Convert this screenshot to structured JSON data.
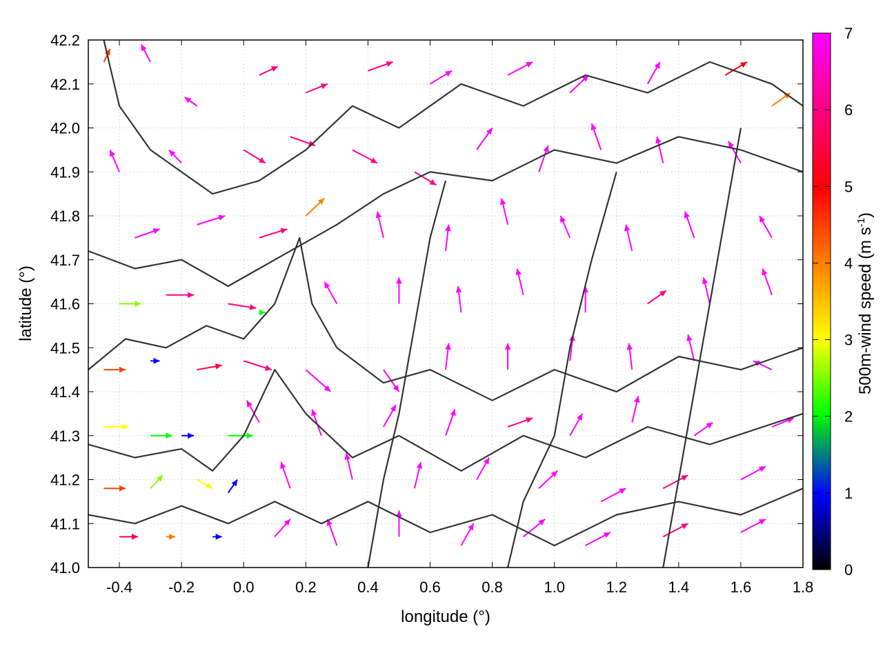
{
  "chart_data": {
    "type": "vector-field",
    "xlabel": "longitude (°)",
    "ylabel": "latitude (°)",
    "colorbar_label_main": "500m-wind speed (m s",
    "colorbar_label_exp": "-1",
    "colorbar_label_close": ")",
    "xlim": [
      -0.5,
      1.8
    ],
    "ylim": [
      41.0,
      42.2
    ],
    "x_ticks": [
      -0.4,
      -0.2,
      0.0,
      0.2,
      0.4,
      0.6,
      0.8,
      1.0,
      1.2,
      1.4,
      1.6,
      1.8
    ],
    "x_tick_labels": [
      "-0.4",
      "-0.2",
      "0.0",
      "0.2",
      "0.4",
      "0.6",
      "0.8",
      "1.0",
      "1.2",
      "1.4",
      "1.6",
      "1.8"
    ],
    "y_ticks": [
      41.0,
      41.1,
      41.2,
      41.3,
      41.4,
      41.5,
      41.6,
      41.7,
      41.8,
      41.9,
      42.0,
      42.1,
      42.2
    ],
    "y_tick_labels": [
      "41.0",
      "41.1",
      "41.2",
      "41.3",
      "41.4",
      "41.5",
      "41.6",
      "41.7",
      "41.8",
      "41.9",
      "42.0",
      "42.1",
      "42.2"
    ],
    "colorbar_range": [
      0,
      7
    ],
    "colorbar_ticks": [
      0,
      1,
      2,
      3,
      4,
      5,
      6,
      7
    ],
    "colorbar_tick_labels": [
      "0",
      "1",
      "2",
      "3",
      "4",
      "5",
      "6",
      "7"
    ],
    "colormap": [
      "#000000",
      "#0000ff",
      "#00ff00",
      "#ffff00",
      "#ff8000",
      "#ff0000",
      "#ff00ff"
    ],
    "contour_color": "#333333",
    "grid": "dotted",
    "wind_vectors": [
      {
        "lon": -0.45,
        "lat": 42.15,
        "u": 0.02,
        "v": 0.03,
        "speed": 4.5
      },
      {
        "lon": -0.3,
        "lat": 42.15,
        "u": -0.03,
        "v": 0.04,
        "speed": 7
      },
      {
        "lon": -0.15,
        "lat": 42.05,
        "u": -0.04,
        "v": 0.02,
        "speed": 7
      },
      {
        "lon": 0.05,
        "lat": 42.12,
        "u": 0.06,
        "v": 0.02,
        "speed": 6
      },
      {
        "lon": 0.2,
        "lat": 42.08,
        "u": 0.07,
        "v": 0.02,
        "speed": 6
      },
      {
        "lon": 0.4,
        "lat": 42.13,
        "u": 0.08,
        "v": 0.02,
        "speed": 6
      },
      {
        "lon": 0.6,
        "lat": 42.1,
        "u": 0.07,
        "v": 0.03,
        "speed": 7
      },
      {
        "lon": 0.85,
        "lat": 42.12,
        "u": 0.08,
        "v": 0.03,
        "speed": 7
      },
      {
        "lon": 1.05,
        "lat": 42.08,
        "u": 0.06,
        "v": 0.04,
        "speed": 7
      },
      {
        "lon": 1.3,
        "lat": 42.1,
        "u": 0.04,
        "v": 0.05,
        "speed": 7
      },
      {
        "lon": 1.55,
        "lat": 42.12,
        "u": 0.07,
        "v": 0.03,
        "speed": 5
      },
      {
        "lon": 1.7,
        "lat": 42.05,
        "u": 0.06,
        "v": 0.03,
        "speed": 4
      },
      {
        "lon": -0.4,
        "lat": 41.9,
        "u": -0.03,
        "v": 0.05,
        "speed": 7
      },
      {
        "lon": -0.2,
        "lat": 41.92,
        "u": -0.04,
        "v": 0.03,
        "speed": 7
      },
      {
        "lon": 0.0,
        "lat": 41.95,
        "u": 0.07,
        "v": -0.03,
        "speed": 6
      },
      {
        "lon": 0.15,
        "lat": 41.98,
        "u": 0.08,
        "v": -0.02,
        "speed": 6
      },
      {
        "lon": 0.35,
        "lat": 41.95,
        "u": 0.08,
        "v": -0.03,
        "speed": 6
      },
      {
        "lon": 0.55,
        "lat": 41.9,
        "u": 0.07,
        "v": -0.03,
        "speed": 6
      },
      {
        "lon": 0.75,
        "lat": 41.95,
        "u": 0.05,
        "v": 0.05,
        "speed": 7
      },
      {
        "lon": 0.95,
        "lat": 41.9,
        "u": 0.03,
        "v": 0.06,
        "speed": 7
      },
      {
        "lon": 1.15,
        "lat": 41.95,
        "u": -0.03,
        "v": 0.06,
        "speed": 7
      },
      {
        "lon": 1.35,
        "lat": 41.92,
        "u": -0.02,
        "v": 0.06,
        "speed": 7
      },
      {
        "lon": 1.6,
        "lat": 41.92,
        "u": -0.04,
        "v": 0.05,
        "speed": 7
      },
      {
        "lon": -0.35,
        "lat": 41.75,
        "u": 0.08,
        "v": 0.02,
        "speed": 7
      },
      {
        "lon": -0.15,
        "lat": 41.78,
        "u": 0.09,
        "v": 0.02,
        "speed": 7
      },
      {
        "lon": 0.05,
        "lat": 41.75,
        "u": 0.09,
        "v": 0.02,
        "speed": 6
      },
      {
        "lon": 0.2,
        "lat": 41.8,
        "u": 0.06,
        "v": 0.04,
        "speed": 4
      },
      {
        "lon": 0.45,
        "lat": 41.75,
        "u": -0.02,
        "v": 0.06,
        "speed": 7
      },
      {
        "lon": 0.65,
        "lat": 41.72,
        "u": 0.01,
        "v": 0.06,
        "speed": 7
      },
      {
        "lon": 0.85,
        "lat": 41.78,
        "u": -0.02,
        "v": 0.06,
        "speed": 7
      },
      {
        "lon": 1.05,
        "lat": 41.75,
        "u": -0.03,
        "v": 0.05,
        "speed": 7
      },
      {
        "lon": 1.25,
        "lat": 41.72,
        "u": -0.02,
        "v": 0.06,
        "speed": 7
      },
      {
        "lon": 1.45,
        "lat": 41.75,
        "u": -0.03,
        "v": 0.06,
        "speed": 7
      },
      {
        "lon": 1.7,
        "lat": 41.75,
        "u": -0.04,
        "v": 0.05,
        "speed": 7
      },
      {
        "lon": -0.4,
        "lat": 41.6,
        "u": 0.07,
        "v": 0.0,
        "speed": 2.5
      },
      {
        "lon": -0.25,
        "lat": 41.62,
        "u": 0.09,
        "v": 0.0,
        "speed": 6
      },
      {
        "lon": -0.05,
        "lat": 41.6,
        "u": 0.09,
        "v": -0.01,
        "speed": 6
      },
      {
        "lon": 0.05,
        "lat": 41.58,
        "u": 0.02,
        "v": 0.0,
        "speed": 2
      },
      {
        "lon": 0.3,
        "lat": 41.6,
        "u": -0.04,
        "v": 0.05,
        "speed": 7
      },
      {
        "lon": 0.5,
        "lat": 41.6,
        "u": 0.0,
        "v": 0.06,
        "speed": 7
      },
      {
        "lon": 0.7,
        "lat": 41.58,
        "u": -0.01,
        "v": 0.06,
        "speed": 7
      },
      {
        "lon": 0.9,
        "lat": 41.62,
        "u": -0.02,
        "v": 0.06,
        "speed": 7
      },
      {
        "lon": 1.1,
        "lat": 41.58,
        "u": 0.0,
        "v": 0.06,
        "speed": 7
      },
      {
        "lon": 1.3,
        "lat": 41.6,
        "u": 0.06,
        "v": 0.03,
        "speed": 6
      },
      {
        "lon": 1.5,
        "lat": 41.6,
        "u": -0.02,
        "v": 0.06,
        "speed": 7
      },
      {
        "lon": 1.7,
        "lat": 41.62,
        "u": -0.03,
        "v": 0.06,
        "speed": 7
      },
      {
        "lon": -0.45,
        "lat": 41.45,
        "u": 0.07,
        "v": 0.0,
        "speed": 4.5
      },
      {
        "lon": -0.3,
        "lat": 41.47,
        "u": 0.03,
        "v": 0.0,
        "speed": 1
      },
      {
        "lon": -0.15,
        "lat": 41.45,
        "u": 0.08,
        "v": 0.01,
        "speed": 5.5
      },
      {
        "lon": 0.0,
        "lat": 41.47,
        "u": 0.09,
        "v": -0.02,
        "speed": 6
      },
      {
        "lon": 0.2,
        "lat": 41.45,
        "u": 0.08,
        "v": -0.05,
        "speed": 7
      },
      {
        "lon": 0.45,
        "lat": 41.45,
        "u": 0.05,
        "v": -0.05,
        "speed": 7
      },
      {
        "lon": 0.65,
        "lat": 41.45,
        "u": 0.01,
        "v": 0.06,
        "speed": 7
      },
      {
        "lon": 0.85,
        "lat": 41.45,
        "u": 0.0,
        "v": 0.06,
        "speed": 7
      },
      {
        "lon": 1.05,
        "lat": 41.47,
        "u": 0.01,
        "v": 0.06,
        "speed": 7
      },
      {
        "lon": 1.25,
        "lat": 41.45,
        "u": -0.01,
        "v": 0.06,
        "speed": 7
      },
      {
        "lon": 1.45,
        "lat": 41.47,
        "u": -0.02,
        "v": 0.06,
        "speed": 7
      },
      {
        "lon": 1.7,
        "lat": 41.45,
        "u": -0.06,
        "v": 0.02,
        "speed": 7
      },
      {
        "lon": -0.45,
        "lat": 41.32,
        "u": 0.08,
        "v": 0.0,
        "speed": 3
      },
      {
        "lon": -0.3,
        "lat": 41.3,
        "u": 0.07,
        "v": 0.0,
        "speed": 2
      },
      {
        "lon": -0.2,
        "lat": 41.3,
        "u": 0.04,
        "v": 0.0,
        "speed": 1
      },
      {
        "lon": -0.05,
        "lat": 41.3,
        "u": 0.08,
        "v": 0.0,
        "speed": 2
      },
      {
        "lon": 0.05,
        "lat": 41.33,
        "u": -0.04,
        "v": 0.05,
        "speed": 7
      },
      {
        "lon": 0.25,
        "lat": 41.3,
        "u": -0.03,
        "v": 0.06,
        "speed": 7
      },
      {
        "lon": 0.45,
        "lat": 41.32,
        "u": 0.04,
        "v": 0.05,
        "speed": 7
      },
      {
        "lon": 0.65,
        "lat": 41.3,
        "u": 0.03,
        "v": 0.06,
        "speed": 7
      },
      {
        "lon": 0.85,
        "lat": 41.32,
        "u": 0.08,
        "v": 0.02,
        "speed": 6
      },
      {
        "lon": 1.05,
        "lat": 41.3,
        "u": 0.04,
        "v": 0.05,
        "speed": 7
      },
      {
        "lon": 1.25,
        "lat": 41.33,
        "u": 0.02,
        "v": 0.06,
        "speed": 7
      },
      {
        "lon": 1.45,
        "lat": 41.3,
        "u": 0.06,
        "v": 0.03,
        "speed": 7
      },
      {
        "lon": 1.7,
        "lat": 41.32,
        "u": 0.07,
        "v": 0.02,
        "speed": 7
      },
      {
        "lon": -0.45,
        "lat": 41.18,
        "u": 0.07,
        "v": 0.0,
        "speed": 4.5
      },
      {
        "lon": -0.3,
        "lat": 41.18,
        "u": 0.04,
        "v": 0.03,
        "speed": 2.5
      },
      {
        "lon": -0.15,
        "lat": 41.2,
        "u": 0.05,
        "v": -0.02,
        "speed": 3
      },
      {
        "lon": -0.05,
        "lat": 41.17,
        "u": 0.03,
        "v": 0.03,
        "speed": 1
      },
      {
        "lon": 0.15,
        "lat": 41.18,
        "u": -0.03,
        "v": 0.06,
        "speed": 7
      },
      {
        "lon": 0.35,
        "lat": 41.2,
        "u": -0.02,
        "v": 0.06,
        "speed": 7
      },
      {
        "lon": 0.55,
        "lat": 41.18,
        "u": 0.02,
        "v": 0.06,
        "speed": 7
      },
      {
        "lon": 0.75,
        "lat": 41.2,
        "u": 0.04,
        "v": 0.05,
        "speed": 7
      },
      {
        "lon": 0.95,
        "lat": 41.18,
        "u": 0.06,
        "v": 0.04,
        "speed": 7
      },
      {
        "lon": 1.15,
        "lat": 41.15,
        "u": 0.08,
        "v": 0.03,
        "speed": 7
      },
      {
        "lon": 1.35,
        "lat": 41.18,
        "u": 0.08,
        "v": 0.03,
        "speed": 6
      },
      {
        "lon": 1.6,
        "lat": 41.2,
        "u": 0.08,
        "v": 0.03,
        "speed": 7
      },
      {
        "lon": -0.4,
        "lat": 41.07,
        "u": 0.06,
        "v": 0.0,
        "speed": 5.5
      },
      {
        "lon": -0.25,
        "lat": 41.07,
        "u": 0.03,
        "v": 0.0,
        "speed": 4
      },
      {
        "lon": -0.1,
        "lat": 41.07,
        "u": 0.03,
        "v": 0.0,
        "speed": 1
      },
      {
        "lon": 0.1,
        "lat": 41.07,
        "u": 0.05,
        "v": 0.04,
        "speed": 7
      },
      {
        "lon": 0.3,
        "lat": 41.05,
        "u": -0.03,
        "v": 0.06,
        "speed": 7
      },
      {
        "lon": 0.5,
        "lat": 41.07,
        "u": 0.0,
        "v": 0.06,
        "speed": 7
      },
      {
        "lon": 0.7,
        "lat": 41.05,
        "u": 0.04,
        "v": 0.05,
        "speed": 7
      },
      {
        "lon": 0.9,
        "lat": 41.07,
        "u": 0.07,
        "v": 0.04,
        "speed": 7
      },
      {
        "lon": 1.1,
        "lat": 41.05,
        "u": 0.08,
        "v": 0.03,
        "speed": 7
      },
      {
        "lon": 1.35,
        "lat": 41.07,
        "u": 0.08,
        "v": 0.03,
        "speed": 6
      },
      {
        "lon": 1.6,
        "lat": 41.08,
        "u": 0.08,
        "v": 0.03,
        "speed": 7
      }
    ],
    "contours": [
      [
        [
          -0.5,
          41.72
        ],
        [
          -0.35,
          41.68
        ],
        [
          -0.2,
          41.7
        ],
        [
          -0.05,
          41.64
        ],
        [
          0.1,
          41.7
        ],
        [
          0.3,
          41.78
        ],
        [
          0.45,
          41.85
        ],
        [
          0.6,
          41.9
        ],
        [
          0.8,
          41.88
        ],
        [
          1.0,
          41.95
        ],
        [
          1.2,
          41.92
        ],
        [
          1.4,
          41.98
        ],
        [
          1.6,
          41.95
        ],
        [
          1.8,
          41.9
        ]
      ],
      [
        [
          -0.5,
          41.45
        ],
        [
          -0.38,
          41.52
        ],
        [
          -0.25,
          41.5
        ],
        [
          -0.12,
          41.55
        ],
        [
          0.0,
          41.52
        ],
        [
          0.1,
          41.6
        ],
        [
          0.18,
          41.75
        ],
        [
          0.22,
          41.6
        ],
        [
          0.3,
          41.5
        ],
        [
          0.45,
          41.42
        ],
        [
          0.6,
          41.45
        ],
        [
          0.8,
          41.38
        ],
        [
          1.0,
          41.45
        ],
        [
          1.2,
          41.4
        ],
        [
          1.4,
          41.48
        ],
        [
          1.6,
          41.45
        ],
        [
          1.8,
          41.5
        ]
      ],
      [
        [
          -0.5,
          41.28
        ],
        [
          -0.35,
          41.25
        ],
        [
          -0.2,
          41.27
        ],
        [
          -0.1,
          41.22
        ],
        [
          0.0,
          41.3
        ],
        [
          0.1,
          41.45
        ],
        [
          0.2,
          41.35
        ],
        [
          0.35,
          41.25
        ],
        [
          0.5,
          41.3
        ],
        [
          0.7,
          41.22
        ],
        [
          0.9,
          41.3
        ],
        [
          1.1,
          41.25
        ],
        [
          1.3,
          41.32
        ],
        [
          1.5,
          41.28
        ],
        [
          1.8,
          41.35
        ]
      ],
      [
        [
          -0.5,
          41.12
        ],
        [
          -0.35,
          41.1
        ],
        [
          -0.2,
          41.14
        ],
        [
          -0.05,
          41.1
        ],
        [
          0.1,
          41.15
        ],
        [
          0.25,
          41.1
        ],
        [
          0.4,
          41.15
        ],
        [
          0.6,
          41.08
        ],
        [
          0.8,
          41.12
        ],
        [
          1.0,
          41.05
        ],
        [
          1.2,
          41.12
        ],
        [
          1.4,
          41.15
        ],
        [
          1.6,
          41.12
        ],
        [
          1.8,
          41.18
        ]
      ],
      [
        [
          -0.45,
          42.2
        ],
        [
          -0.4,
          42.05
        ],
        [
          -0.3,
          41.95
        ],
        [
          -0.2,
          41.9
        ],
        [
          -0.1,
          41.85
        ],
        [
          0.05,
          41.88
        ],
        [
          0.2,
          41.95
        ],
        [
          0.35,
          42.05
        ],
        [
          0.5,
          42.0
        ],
        [
          0.7,
          42.1
        ],
        [
          0.9,
          42.05
        ],
        [
          1.1,
          42.12
        ],
        [
          1.3,
          42.08
        ],
        [
          1.5,
          42.15
        ],
        [
          1.7,
          42.1
        ],
        [
          1.8,
          42.05
        ]
      ],
      [
        [
          0.4,
          41.0
        ],
        [
          0.45,
          41.2
        ],
        [
          0.5,
          41.35
        ],
        [
          0.55,
          41.55
        ],
        [
          0.6,
          41.75
        ],
        [
          0.65,
          41.88
        ]
      ],
      [
        [
          0.85,
          41.0
        ],
        [
          0.9,
          41.15
        ],
        [
          1.0,
          41.3
        ],
        [
          1.05,
          41.5
        ],
        [
          1.12,
          41.7
        ],
        [
          1.2,
          41.9
        ]
      ],
      [
        [
          1.35,
          41.0
        ],
        [
          1.4,
          41.2
        ],
        [
          1.45,
          41.4
        ],
        [
          1.5,
          41.6
        ],
        [
          1.55,
          41.8
        ],
        [
          1.6,
          42.0
        ]
      ]
    ]
  }
}
